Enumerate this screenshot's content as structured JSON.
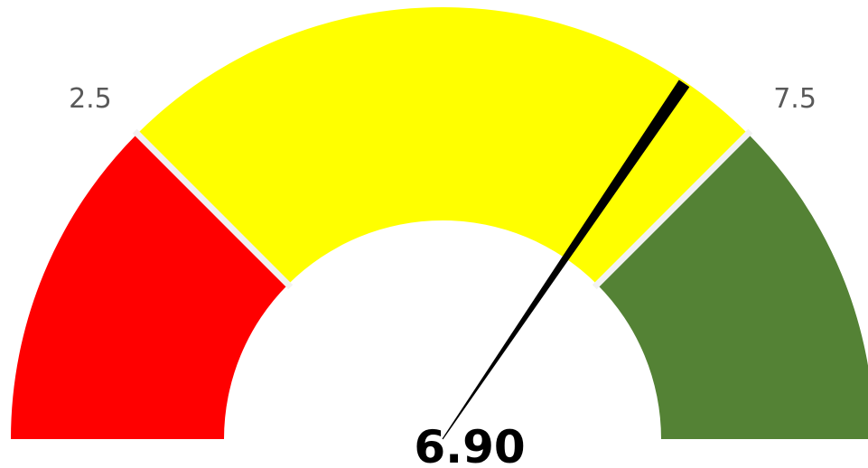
{
  "chart_data": {
    "type": "gauge",
    "range": [
      0,
      10
    ],
    "bands": [
      {
        "from": 0,
        "to": 2.5,
        "color": "#FF0000"
      },
      {
        "from": 2.5,
        "to": 7.5,
        "color": "#FFFF00"
      },
      {
        "from": 7.5,
        "to": 10,
        "color": "#548235"
      }
    ],
    "band_separator_color": "#F2F2F2",
    "tick_labels": [
      "2.5",
      "7.5"
    ],
    "value": 6.9,
    "value_label": "6.90",
    "needle_color": "#000000"
  }
}
